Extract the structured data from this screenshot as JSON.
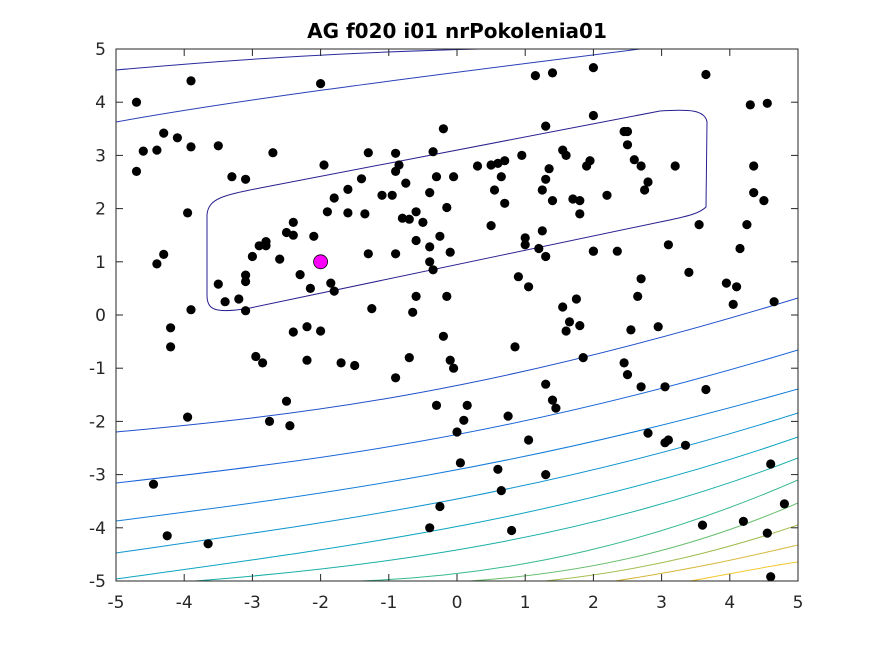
{
  "chart_data": {
    "type": "scatter",
    "title": "AG f020 i01 nrPokolenia01",
    "xlabel": "",
    "ylabel": "",
    "xlim": [
      -5,
      5
    ],
    "ylim": [
      -5,
      5
    ],
    "xticks": [
      -5,
      -4,
      -3,
      -2,
      -1,
      0,
      1,
      2,
      3,
      4,
      5
    ],
    "yticks": [
      -5,
      -4,
      -3,
      -2,
      -1,
      0,
      1,
      2,
      3,
      4,
      5
    ],
    "grid": false,
    "legend": "none",
    "background_layer": "contour",
    "contour_colormap": "parula",
    "series": [
      {
        "marker": "filled-circle",
        "color": "#000000",
        "points": [
          [
            -4.7,
            4.0
          ],
          [
            -4.6,
            3.08
          ],
          [
            -4.4,
            3.1
          ],
          [
            -4.3,
            3.42
          ],
          [
            -4.1,
            3.33
          ],
          [
            -3.9,
            3.16
          ],
          [
            -3.5,
            3.18
          ],
          [
            -4.7,
            2.7
          ],
          [
            -3.3,
            2.6
          ],
          [
            -3.1,
            2.55
          ],
          [
            -2.7,
            3.05
          ],
          [
            -3.9,
            4.4
          ],
          [
            -2.0,
            4.35
          ],
          [
            -4.4,
            0.96
          ],
          [
            -4.3,
            1.14
          ],
          [
            -4.2,
            -0.24
          ],
          [
            -4.2,
            -0.6
          ],
          [
            -3.9,
            0.1
          ],
          [
            -3.95,
            1.92
          ],
          [
            -3.4,
            0.25
          ],
          [
            -3.5,
            0.58
          ],
          [
            -3.2,
            0.3
          ],
          [
            -3.1,
            0.75
          ],
          [
            -3.1,
            0.63
          ],
          [
            -3.1,
            0.08
          ],
          [
            -3.0,
            1.1
          ],
          [
            -2.9,
            1.3
          ],
          [
            -2.8,
            1.38
          ],
          [
            -2.6,
            1.05
          ],
          [
            -2.5,
            1.55
          ],
          [
            -2.4,
            1.5
          ],
          [
            -2.4,
            1.74
          ],
          [
            -2.3,
            0.76
          ],
          [
            -2.15,
            0.5
          ],
          [
            -2.1,
            1.48
          ],
          [
            -1.9,
            1.94
          ],
          [
            -1.95,
            2.82
          ],
          [
            -1.8,
            2.2
          ],
          [
            -1.6,
            2.36
          ],
          [
            -1.4,
            2.56
          ],
          [
            -1.3,
            3.05
          ],
          [
            -1.6,
            1.92
          ],
          [
            -1.35,
            1.9
          ],
          [
            -1.1,
            2.25
          ],
          [
            -0.95,
            2.25
          ],
          [
            -0.9,
            3.04
          ],
          [
            -0.85,
            2.82
          ],
          [
            -0.9,
            2.7
          ],
          [
            -0.8,
            1.82
          ],
          [
            -0.75,
            2.48
          ],
          [
            -0.7,
            1.8
          ],
          [
            -0.6,
            1.94
          ],
          [
            -0.5,
            1.74
          ],
          [
            -0.4,
            2.3
          ],
          [
            -0.3,
            2.6
          ],
          [
            -0.35,
            3.07
          ],
          [
            -0.2,
            3.5
          ],
          [
            -0.15,
            2.02
          ],
          [
            -0.05,
            2.6
          ],
          [
            -0.25,
            1.48
          ],
          [
            -0.4,
            1.28
          ],
          [
            -0.4,
            1.0
          ],
          [
            -0.6,
            1.4
          ],
          [
            -0.9,
            1.15
          ],
          [
            -0.1,
            1.18
          ],
          [
            -0.35,
            0.85
          ],
          [
            -1.3,
            1.15
          ],
          [
            -1.25,
            0.12
          ],
          [
            -2.0,
            -0.3
          ],
          [
            -2.4,
            -0.32
          ],
          [
            -2.2,
            -0.22
          ],
          [
            -1.85,
            0.6
          ],
          [
            -1.8,
            0.45
          ],
          [
            -2.8,
            1.3
          ],
          [
            -2.95,
            -0.78
          ],
          [
            -2.85,
            -0.9
          ],
          [
            -2.2,
            -0.85
          ],
          [
            -1.7,
            -0.9
          ],
          [
            -1.5,
            -0.95
          ],
          [
            -0.9,
            -1.18
          ],
          [
            -0.7,
            -0.8
          ],
          [
            -0.65,
            0.05
          ],
          [
            -0.6,
            0.35
          ],
          [
            -0.15,
            0.35
          ],
          [
            -0.2,
            -0.4
          ],
          [
            -0.1,
            -0.85
          ],
          [
            -0.05,
            -1.0
          ],
          [
            -0.3,
            -1.7
          ],
          [
            0.15,
            -1.7
          ],
          [
            0.1,
            -1.98
          ],
          [
            0.0,
            -2.2
          ],
          [
            0.05,
            -2.78
          ],
          [
            0.6,
            -2.9
          ],
          [
            0.65,
            -3.3
          ],
          [
            0.75,
            -1.9
          ],
          [
            0.85,
            -0.6
          ],
          [
            0.3,
            2.8
          ],
          [
            0.5,
            2.82
          ],
          [
            0.6,
            2.85
          ],
          [
            0.65,
            2.6
          ],
          [
            0.7,
            2.9
          ],
          [
            0.95,
            3.0
          ],
          [
            0.55,
            2.35
          ],
          [
            0.7,
            2.1
          ],
          [
            0.5,
            1.68
          ],
          [
            1.0,
            1.45
          ],
          [
            1.0,
            1.32
          ],
          [
            1.2,
            1.25
          ],
          [
            1.3,
            1.1
          ],
          [
            1.25,
            2.35
          ],
          [
            1.3,
            2.55
          ],
          [
            1.35,
            2.75
          ],
          [
            1.4,
            2.15
          ],
          [
            1.55,
            3.1
          ],
          [
            1.6,
            3.0
          ],
          [
            1.7,
            2.18
          ],
          [
            1.8,
            1.9
          ],
          [
            1.9,
            2.8
          ],
          [
            1.95,
            2.9
          ],
          [
            2.0,
            3.75
          ],
          [
            1.8,
            2.15
          ],
          [
            2.2,
            2.25
          ],
          [
            2.5,
            3.45
          ],
          [
            2.45,
            3.45
          ],
          [
            2.5,
            3.2
          ],
          [
            2.6,
            2.92
          ],
          [
            2.7,
            2.8
          ],
          [
            2.8,
            2.5
          ],
          [
            2.75,
            2.35
          ],
          [
            3.2,
            2.8
          ],
          [
            3.1,
            1.32
          ],
          [
            3.4,
            0.8
          ],
          [
            3.55,
            1.7
          ],
          [
            3.95,
            0.6
          ],
          [
            4.05,
            0.2
          ],
          [
            4.1,
            0.53
          ],
          [
            4.15,
            1.25
          ],
          [
            4.25,
            1.7
          ],
          [
            4.35,
            2.3
          ],
          [
            4.35,
            2.8
          ],
          [
            4.5,
            2.15
          ],
          [
            4.3,
            3.95
          ],
          [
            4.55,
            3.98
          ],
          [
            4.65,
            0.25
          ],
          [
            3.65,
            4.52
          ],
          [
            2.0,
            4.65
          ],
          [
            1.4,
            4.55
          ],
          [
            1.15,
            4.5
          ],
          [
            1.3,
            3.55
          ],
          [
            0.9,
            0.72
          ],
          [
            1.05,
            0.53
          ],
          [
            1.25,
            1.58
          ],
          [
            1.55,
            0.15
          ],
          [
            1.65,
            -0.13
          ],
          [
            1.75,
            0.3
          ],
          [
            1.8,
            -0.2
          ],
          [
            1.85,
            -0.8
          ],
          [
            2.35,
            1.2
          ],
          [
            2.45,
            -0.9
          ],
          [
            2.5,
            -1.12
          ],
          [
            2.55,
            -0.28
          ],
          [
            2.65,
            0.35
          ],
          [
            2.7,
            0.68
          ],
          [
            2.7,
            -1.35
          ],
          [
            2.8,
            -2.22
          ],
          [
            2.95,
            -0.22
          ],
          [
            3.05,
            -2.4
          ],
          [
            3.1,
            -2.35
          ],
          [
            3.05,
            -1.35
          ],
          [
            3.35,
            -2.45
          ],
          [
            3.65,
            -1.4
          ],
          [
            3.6,
            -3.95
          ],
          [
            4.2,
            -3.88
          ],
          [
            4.55,
            -4.1
          ],
          [
            4.6,
            -2.8
          ],
          [
            4.8,
            -3.55
          ],
          [
            4.6,
            -4.92
          ],
          [
            1.4,
            -1.6
          ],
          [
            1.45,
            -1.75
          ],
          [
            1.3,
            -1.3
          ],
          [
            1.05,
            -2.35
          ],
          [
            0.8,
            -4.05
          ],
          [
            1.3,
            -3.0
          ],
          [
            -0.4,
            -4.0
          ],
          [
            -0.25,
            -3.6
          ],
          [
            -2.5,
            -1.62
          ],
          [
            -2.45,
            -2.08
          ],
          [
            -2.75,
            -2.0
          ],
          [
            -3.95,
            -1.92
          ],
          [
            -4.45,
            -3.18
          ],
          [
            -4.25,
            -4.15
          ],
          [
            -3.65,
            -4.3
          ],
          [
            1.6,
            -0.3
          ],
          [
            2.0,
            1.2
          ],
          [
            2.0,
            1.2
          ]
        ]
      },
      {
        "marker": "filled-circle-large",
        "color": "#ff00ff",
        "points": [
          [
            -2.0,
            1.0
          ]
        ]
      }
    ]
  }
}
